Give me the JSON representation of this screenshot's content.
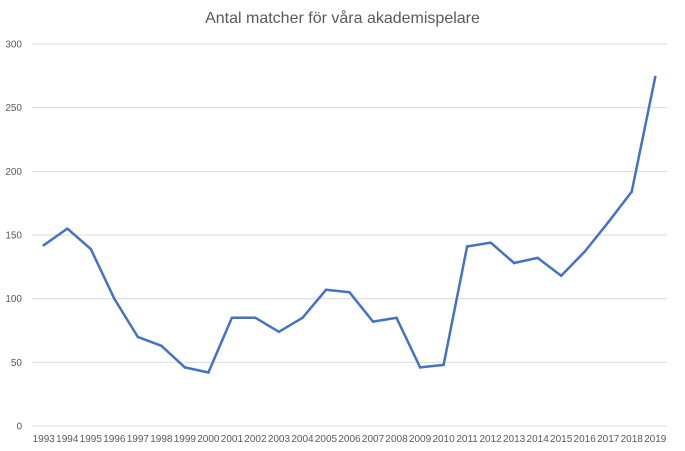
{
  "chart_data": {
    "type": "line",
    "title": "Antal matcher för våra akademispelare",
    "xlabel": "",
    "ylabel": "",
    "ylim": [
      0,
      300
    ],
    "yticks": [
      0,
      50,
      100,
      150,
      200,
      250,
      300
    ],
    "grid": true,
    "legend": "none",
    "categories": [
      "1993",
      "1994",
      "1995",
      "1996",
      "1997",
      "1998",
      "1999",
      "2000",
      "2001",
      "2002",
      "2003",
      "2004",
      "2005",
      "2006",
      "2007",
      "2008",
      "2009",
      "2010",
      "2011",
      "2012",
      "2013",
      "2014",
      "2015",
      "2016",
      "2017",
      "2018",
      "2019"
    ],
    "series": [
      {
        "color": "#4472c4",
        "values": [
          142,
          155,
          139,
          100,
          70,
          63,
          46,
          42,
          85,
          85,
          74,
          85,
          107,
          105,
          82,
          85,
          46,
          48,
          141,
          144,
          128,
          132,
          118,
          137,
          160,
          184,
          274
        ]
      }
    ]
  }
}
